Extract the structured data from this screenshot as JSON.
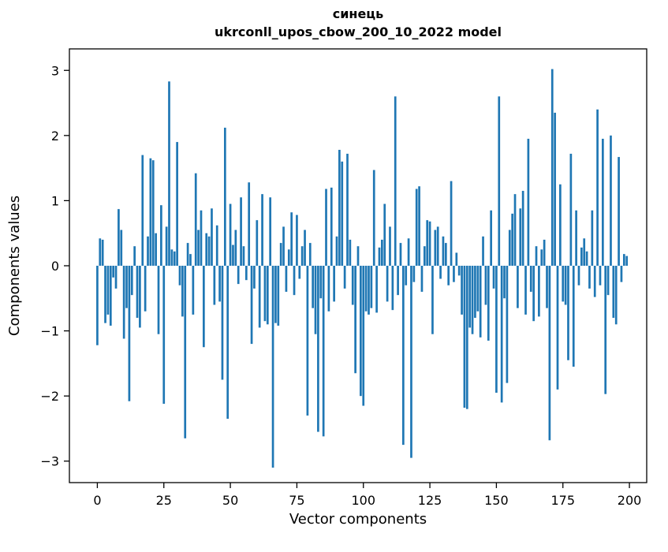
{
  "chart_data": {
    "type": "bar",
    "title": "синець",
    "subtitle": "ukrconll_upos_cbow_200_10_2022 model",
    "xlabel": "Vector components",
    "ylabel": "Components values",
    "bar_color": "#1f77b4",
    "xlim": [
      -10.5,
      206.5
    ],
    "ylim": [
      -3.33,
      3.33
    ],
    "xticks": [
      0,
      25,
      50,
      75,
      100,
      125,
      150,
      175,
      200
    ],
    "yticks": [
      -3,
      -2,
      -1,
      0,
      1,
      2,
      3
    ],
    "bar_width": 0.8,
    "legend": "none",
    "grid": false,
    "values": [
      -1.22,
      0.42,
      0.4,
      -0.88,
      -0.75,
      -0.92,
      -0.18,
      -0.35,
      0.87,
      0.55,
      -1.12,
      -0.65,
      -2.08,
      -0.45,
      0.3,
      -0.8,
      -0.95,
      1.7,
      -0.7,
      0.45,
      1.65,
      1.62,
      0.5,
      -1.05,
      0.93,
      -2.12,
      0.6,
      2.83,
      0.25,
      0.22,
      1.9,
      -0.3,
      -0.78,
      -2.65,
      0.35,
      0.18,
      -0.75,
      1.42,
      0.55,
      0.85,
      -1.25,
      0.5,
      0.45,
      0.88,
      -0.6,
      0.62,
      -0.55,
      -1.75,
      2.12,
      -2.35,
      0.95,
      0.32,
      0.55,
      -0.28,
      1.05,
      0.3,
      -0.22,
      1.28,
      -1.2,
      -0.35,
      0.7,
      -0.95,
      1.1,
      -0.85,
      -0.9,
      1.05,
      -3.1,
      -0.88,
      -0.92,
      0.35,
      0.6,
      -0.4,
      0.25,
      0.82,
      -0.45,
      0.78,
      -0.2,
      0.3,
      0.55,
      -2.3,
      0.35,
      -0.65,
      -1.05,
      -2.55,
      -0.5,
      -2.62,
      1.18,
      -0.7,
      1.2,
      -0.55,
      0.45,
      1.78,
      1.6,
      -0.35,
      1.72,
      0.4,
      -0.6,
      -1.65,
      0.3,
      -2.0,
      -2.15,
      -0.7,
      -0.75,
      -0.65,
      1.47,
      -0.72,
      0.28,
      0.4,
      0.95,
      -0.55,
      0.6,
      -0.68,
      2.6,
      -0.45,
      0.35,
      -2.75,
      -0.3,
      0.42,
      -2.95,
      -0.25,
      1.18,
      1.22,
      -0.4,
      0.3,
      0.7,
      0.68,
      -1.05,
      0.55,
      0.6,
      -0.2,
      0.45,
      0.35,
      -0.3,
      1.3,
      -0.25,
      0.2,
      -0.15,
      -0.75,
      -2.18,
      -2.2,
      -0.95,
      -1.05,
      -0.8,
      -0.7,
      -1.1,
      0.45,
      -0.6,
      -1.15,
      0.85,
      -0.35,
      -1.95,
      2.6,
      -2.1,
      -0.5,
      -1.8,
      0.55,
      0.8,
      1.1,
      -0.65,
      0.88,
      1.15,
      -0.75,
      1.95,
      -0.4,
      -0.85,
      0.3,
      -0.78,
      0.25,
      0.4,
      -0.65,
      -2.68,
      3.02,
      2.35,
      -1.9,
      1.25,
      -0.55,
      -0.6,
      -1.45,
      1.72,
      -1.55,
      0.85,
      -0.3,
      0.28,
      0.42,
      0.22,
      -0.35,
      0.85,
      -0.48,
      2.4,
      -0.3,
      1.95,
      -1.97,
      -0.45,
      2.0,
      -0.8,
      -0.9,
      1.67,
      -0.25,
      0.18,
      0.15
    ]
  }
}
